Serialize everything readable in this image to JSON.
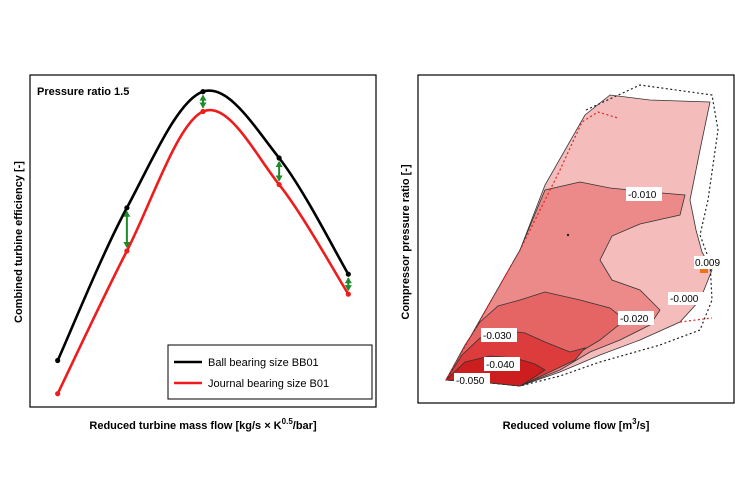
{
  "chart_data": [
    {
      "type": "line",
      "annotation": "Pressure ratio 1.5",
      "xlabel_main": "Reduced turbine mass flow [kg/s × K",
      "xlabel_sup": "0.5",
      "xlabel_end": "/bar]",
      "ylabel": "Combined turbine efficiency [-]",
      "xlim": [
        0,
        1
      ],
      "ylim": [
        0,
        1
      ],
      "x": [
        0.08,
        0.28,
        0.5,
        0.72,
        0.92
      ],
      "series": [
        {
          "name": "Ball bearing size BB01",
          "color": "#000000",
          "values": [
            0.14,
            0.6,
            0.95,
            0.75,
            0.4
          ]
        },
        {
          "name": "Journal bearing size B01",
          "color": "#ee1c1c",
          "values": [
            0.04,
            0.47,
            0.89,
            0.67,
            0.34
          ]
        }
      ],
      "difference_arrow_color": "#1f8a2a",
      "legend_position": "bottom-right"
    },
    {
      "type": "heatmap",
      "subtype": "contour",
      "xlabel_main": "Reduced volume flow [m",
      "xlabel_sup": "3",
      "xlabel_end": "/s]",
      "ylabel": "Compressor pressure ratio [-]",
      "contour_labels": [
        "-0.010",
        "0.009",
        "-0.000",
        "-0.020",
        "-0.030",
        "-0.040",
        "-0.050"
      ],
      "colors": {
        "level_1": "#f5bcbc",
        "level_2": "#ec8a8a",
        "level_3": "#e56464",
        "level_4": "#dc3c3c",
        "level_5": "#cc1e1e"
      },
      "marker_color": "#e8741c"
    }
  ]
}
